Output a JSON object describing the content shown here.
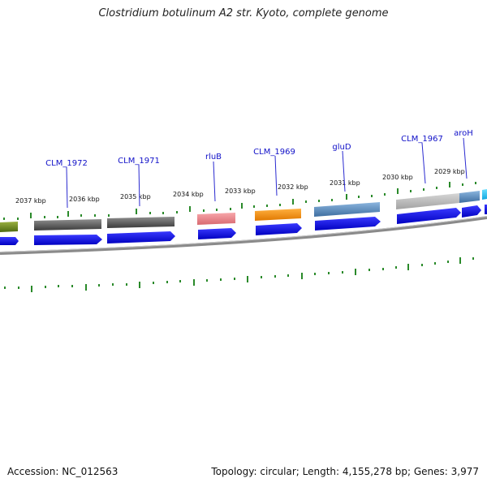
{
  "title": "Clostridium botulinum A2 str. Kyoto, complete genome",
  "footer": {
    "accession": "Accession: NC_012563",
    "summary": "Topology: circular; Length: 4,155,278 bp; Genes: 3,977"
  },
  "kbp_labels": [
    "2037 kbp",
    "2036 kbp",
    "2035 kbp",
    "2034 kbp",
    "2033 kbp",
    "2032 kbp",
    "2031 kbp",
    "2030 kbp",
    "2029 kbp"
  ],
  "gene_labels": [
    "CLM_1972",
    "CLM_1971",
    "rluB",
    "CLM_1969",
    "gluD",
    "CLM_1967",
    "aroH"
  ],
  "colors": {
    "backbone": "#7a7a7a",
    "tick": "#2a8a2a",
    "cds_arrow": "#0a0ae6",
    "label_line": "#2a2ad0"
  }
}
